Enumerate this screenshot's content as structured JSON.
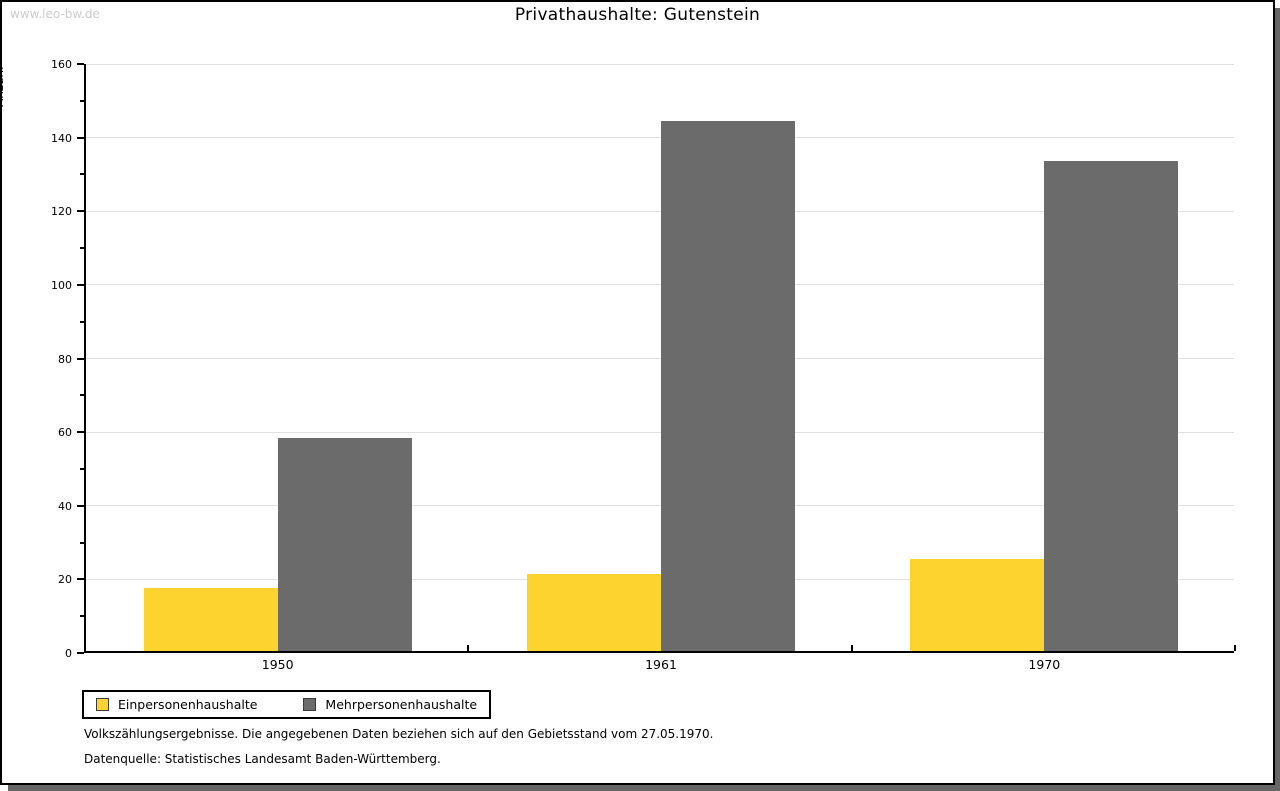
{
  "watermark": "www.leo-bw.de",
  "chart_data": {
    "type": "bar",
    "title": "Privathaushalte: Gutenstein",
    "ylabel": "Anzahl",
    "xlabel": "",
    "categories": [
      "1950",
      "1961",
      "1970"
    ],
    "series": [
      {
        "name": "Einpersonenhaushalte",
        "color": "#FCD32F",
        "values": [
          17,
          21,
          25
        ]
      },
      {
        "name": "Mehrpersonenhaushalte",
        "color": "#6B6B6B",
        "values": [
          58,
          144,
          133
        ]
      }
    ],
    "ylim": [
      0,
      160
    ],
    "ytick_step": 20,
    "ytick_minor_step": 10,
    "grid": true,
    "gridline_color": "#E0E0E0",
    "legend_position": "bottom-left"
  },
  "footnotes": {
    "line1": "Volkszählungsergebnisse. Die angegebenen Daten beziehen sich auf den Gebietsstand vom 27.05.1970.",
    "line2": "Datenquelle: Statistisches Landesamt Baden-Württemberg."
  }
}
